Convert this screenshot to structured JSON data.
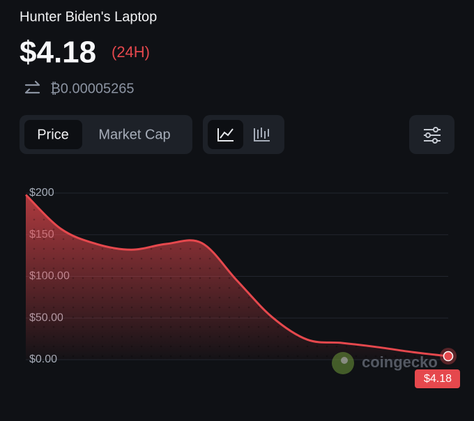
{
  "header": {
    "title": "Hunter Biden's Laptop",
    "price": "$4.18",
    "period": "(24H)",
    "btc_price": "₿0.00005265"
  },
  "tabs": [
    "Price",
    "Market Cap"
  ],
  "chart_data": {
    "type": "area",
    "values": [
      198,
      157,
      139,
      132,
      139,
      140,
      95,
      51,
      24,
      20,
      15,
      9,
      4.18
    ],
    "value_labels": [
      null,
      null,
      null,
      null,
      null,
      null,
      null,
      null,
      null,
      null,
      null,
      null,
      "$4.18"
    ],
    "color": "#e5484d",
    "ylim": [
      0,
      200
    ],
    "yticks": [
      {
        "value": 0,
        "label": "$0.00"
      },
      {
        "value": 50,
        "label": "$50.00"
      },
      {
        "value": 100,
        "label": "$100.00"
      },
      {
        "value": 150,
        "label": "$150"
      },
      {
        "value": 200,
        "label": "$200"
      }
    ],
    "grid": true,
    "watermark": "coingecko"
  }
}
